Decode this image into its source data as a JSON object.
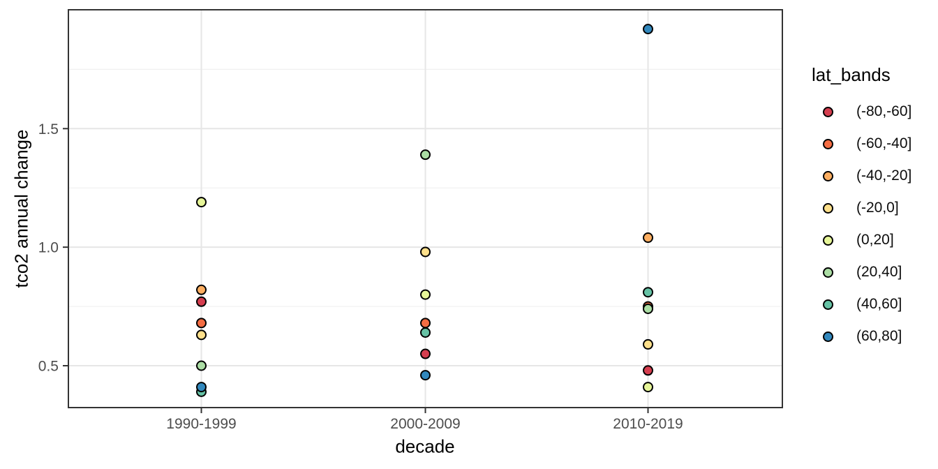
{
  "chart_data": {
    "type": "scatter",
    "title": "",
    "xlabel": "decade",
    "ylabel": "tco2 annual change",
    "legend_title": "lat_bands",
    "legend_position": "right",
    "categories": [
      "1990-1999",
      "2000-2009",
      "2010-2019"
    ],
    "y_ticks": [
      0.5,
      1.0,
      1.5
    ],
    "y_tick_labels": [
      "0.5",
      "1.0",
      "1.5"
    ],
    "y_minor_ticks": [
      0.75,
      1.25,
      1.75
    ],
    "ylim": [
      0.32,
      2.0
    ],
    "grid": "major-and-minor-horizontal, major-vertical-at-categories",
    "point_shape": "filled-circle-black-outline",
    "series": [
      {
        "name": "(-80,-60]",
        "color": "#d53e4f",
        "values": [
          0.77,
          0.55,
          0.48
        ]
      },
      {
        "name": "(-60,-40]",
        "color": "#f46d43",
        "values": [
          0.68,
          0.68,
          0.75
        ]
      },
      {
        "name": "(-40,-20]",
        "color": "#fdae61",
        "values": [
          0.82,
          null,
          1.04
        ]
      },
      {
        "name": "(-20,0]",
        "color": "#fee08b",
        "values": [
          0.63,
          0.98,
          0.59
        ]
      },
      {
        "name": "(0,20]",
        "color": "#e6f598",
        "values": [
          1.19,
          0.8,
          0.41
        ]
      },
      {
        "name": "(20,40]",
        "color": "#abdda4",
        "values": [
          0.5,
          1.39,
          0.74
        ]
      },
      {
        "name": "(40,60]",
        "color": "#66c2a5",
        "values": [
          0.39,
          0.64,
          0.81
        ]
      },
      {
        "name": "(60,80]",
        "color": "#3288bd",
        "values": [
          0.41,
          0.46,
          1.92
        ]
      }
    ],
    "colors": {
      "panel_border": "#333333",
      "grid_major": "#e6e6e6",
      "grid_minor": "#f0f0f0",
      "tick_text": "#4d4d4d",
      "tick_mark": "#333333",
      "background": "#ffffff",
      "point_stroke": "#000000"
    }
  }
}
